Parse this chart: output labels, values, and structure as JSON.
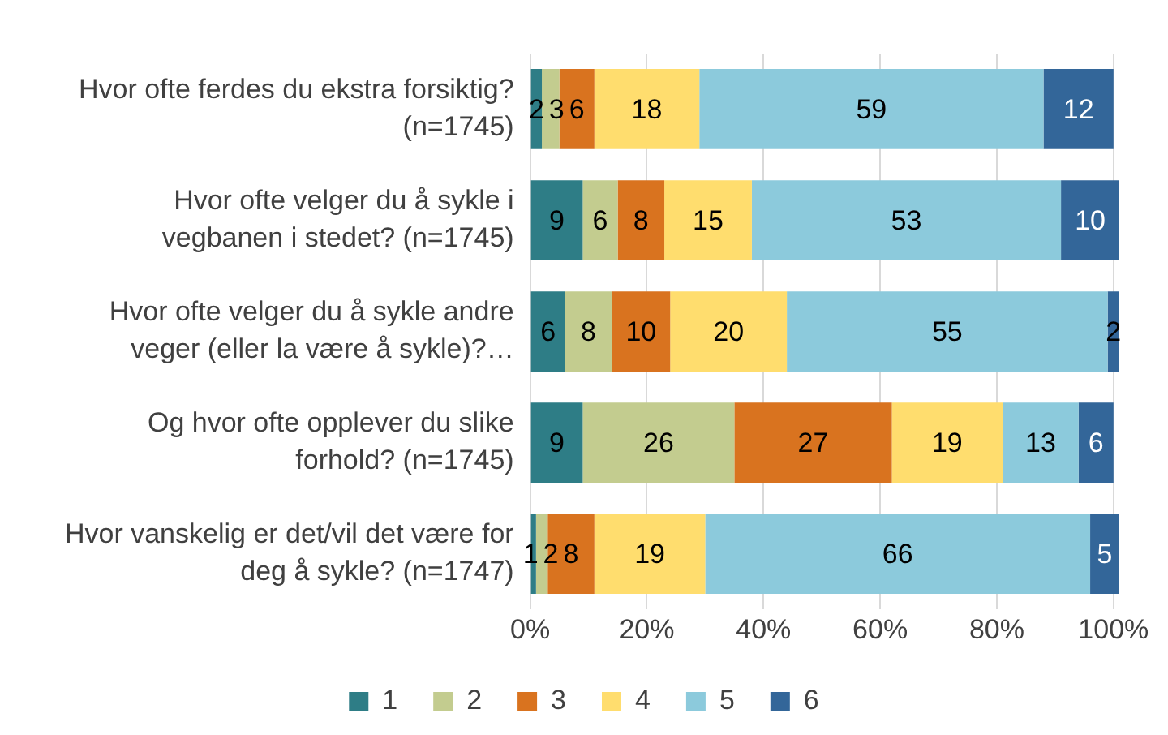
{
  "chart_data": {
    "type": "bar",
    "orientation": "horizontal",
    "stacked": true,
    "data_labels": true,
    "grid": "x",
    "legend": "bottom",
    "categories": [
      "Hvor ofte ferdes du ekstra forsiktig? (n=1745)",
      "Hvor ofte velger du å sykle i vegbanen i stedet? (n=1745)",
      "Hvor ofte velger du å sykle andre veger (eller la være å sykle)?…",
      "Og hvor ofte opplever du slike forhold? (n=1745)",
      "Hvor vanskelig er det/vil det være for deg å sykle? (n=1747)"
    ],
    "xlim": [
      0,
      101
    ],
    "xticks": [
      {
        "value": 0,
        "label": "0%"
      },
      {
        "value": 20,
        "label": "20%"
      },
      {
        "value": 40,
        "label": "40%"
      },
      {
        "value": 60,
        "label": "60%"
      },
      {
        "value": 80,
        "label": "80%"
      },
      {
        "value": 100,
        "label": "100%"
      }
    ],
    "series": [
      {
        "name": "1",
        "color": "#2e7d86",
        "values": [
          2,
          9,
          6,
          9,
          1
        ]
      },
      {
        "name": "2",
        "color": "#c3cc8f",
        "values": [
          3,
          6,
          8,
          26,
          2
        ]
      },
      {
        "name": "3",
        "color": "#d9731f",
        "values": [
          6,
          8,
          10,
          27,
          8
        ]
      },
      {
        "name": "4",
        "color": "#ffdd6e",
        "values": [
          18,
          15,
          20,
          19,
          19
        ]
      },
      {
        "name": "5",
        "color": "#8ccadc",
        "values": [
          59,
          53,
          55,
          13,
          66
        ]
      },
      {
        "name": "6",
        "color": "#336699",
        "values": [
          12,
          10,
          2,
          6,
          5
        ]
      }
    ]
  }
}
